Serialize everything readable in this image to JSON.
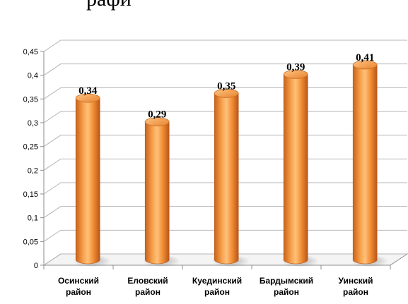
{
  "page": {
    "top_fragment": "рафи"
  },
  "chart_data": {
    "type": "bar",
    "categories": [
      [
        "Осинский",
        "район"
      ],
      [
        "Еловский",
        "район"
      ],
      [
        "Куединский",
        "район"
      ],
      [
        "Бардымский",
        "район"
      ],
      [
        "Уинский",
        "район"
      ]
    ],
    "values": [
      0.34,
      0.29,
      0.35,
      0.39,
      0.41
    ],
    "data_labels": [
      "0,34",
      "0,29",
      "0,35",
      "0,39",
      "0,41"
    ],
    "y_ticks": [
      "0",
      "0,05",
      "0,1",
      "0,15",
      "0,2",
      "0,25",
      "0,3",
      "0,35",
      "0,4",
      "0,45"
    ],
    "ylim": [
      0,
      0.45
    ],
    "grid": true,
    "legend": "none",
    "bar_style": "3d-cylinder",
    "colors": {
      "bar": "#f39a3e",
      "bar_dark": "#c8621a",
      "bar_light": "#ffd7a8",
      "grid": "#b5b5b5",
      "axis": "#8c8c8c"
    }
  }
}
